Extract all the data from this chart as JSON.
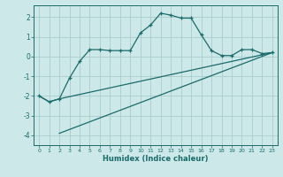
{
  "xlabel": "Humidex (Indice chaleur)",
  "bg_color": "#cce8e8",
  "grid_color": "#aacccc",
  "line_color": "#1a6b6b",
  "xlim": [
    -0.5,
    23.5
  ],
  "ylim": [
    -4.5,
    2.6
  ],
  "yticks": [
    -4,
    -3,
    -2,
    -1,
    0,
    1,
    2
  ],
  "xticks": [
    0,
    1,
    2,
    3,
    4,
    5,
    6,
    7,
    8,
    9,
    10,
    11,
    12,
    13,
    14,
    15,
    16,
    17,
    18,
    19,
    20,
    21,
    22,
    23
  ],
  "line1_x": [
    0,
    1,
    2,
    3,
    4,
    5,
    6,
    7,
    8,
    9,
    10,
    11,
    12,
    13,
    14,
    15,
    16,
    17,
    18,
    19,
    20,
    21,
    22,
    23
  ],
  "line1_y": [
    -2.0,
    -2.3,
    -2.15,
    -1.1,
    -0.25,
    0.35,
    0.35,
    0.3,
    0.3,
    0.3,
    1.2,
    1.6,
    2.2,
    2.1,
    1.95,
    1.95,
    1.1,
    0.3,
    0.05,
    0.05,
    0.35,
    0.35,
    0.15,
    0.2
  ],
  "line2_x": [
    0,
    1,
    2,
    23
  ],
  "line2_y": [
    -2.0,
    -2.3,
    -2.15,
    0.2
  ],
  "line3_x": [
    2,
    23
  ],
  "line3_y": [
    -3.9,
    0.2
  ]
}
